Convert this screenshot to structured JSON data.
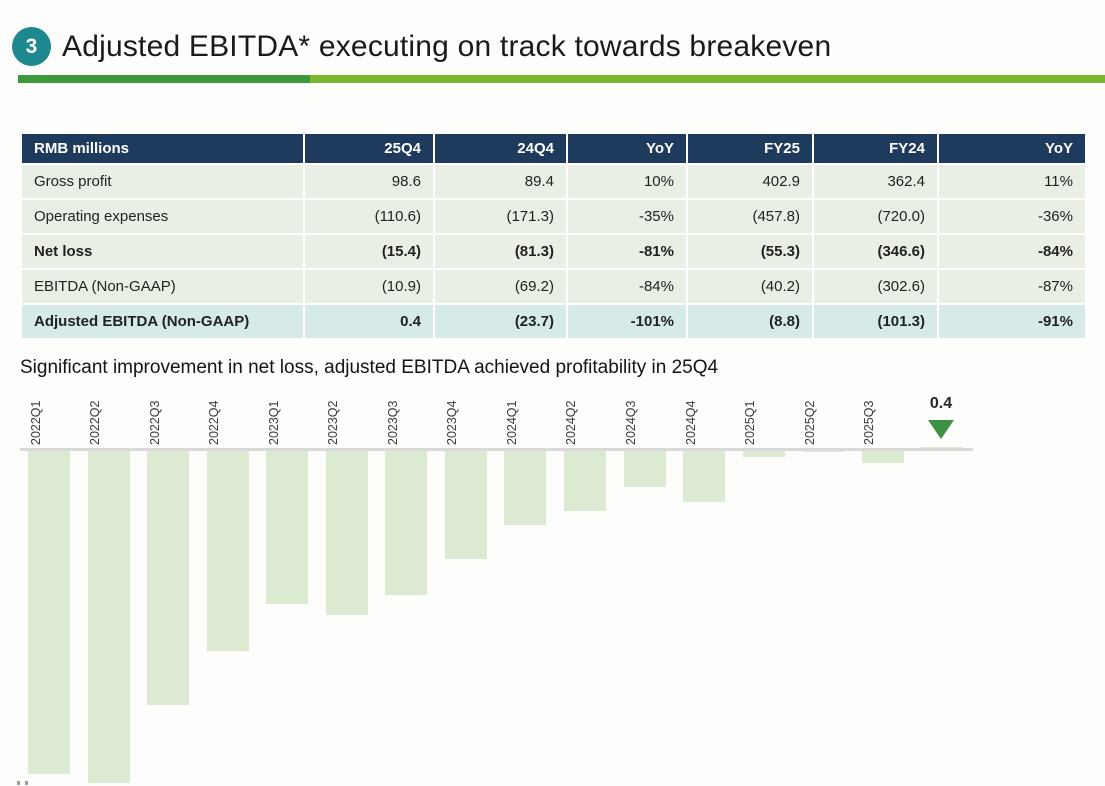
{
  "header": {
    "badge": "3",
    "title": "Adjusted EBITDA* executing on track towards breakeven"
  },
  "table": {
    "columns": [
      "RMB millions",
      "25Q4",
      "24Q4",
      "YoY",
      "FY25",
      "FY24",
      "YoY"
    ],
    "rows": [
      {
        "label": "Gross profit",
        "values": [
          "98.6",
          "89.4",
          "10%",
          "402.9",
          "362.4",
          "11%"
        ],
        "bold": false,
        "highlight": false
      },
      {
        "label": "Operating expenses",
        "values": [
          "(110.6)",
          "(171.3)",
          "-35%",
          "(457.8)",
          "(720.0)",
          "-36%"
        ],
        "bold": false,
        "highlight": false
      },
      {
        "label": "Net loss",
        "values": [
          "(15.4)",
          "(81.3)",
          "-81%",
          "(55.3)",
          "(346.6)",
          "-84%"
        ],
        "bold": true,
        "highlight": false
      },
      {
        "label": "EBITDA (Non-GAAP)",
        "values": [
          "(10.9)",
          "(69.2)",
          "-84%",
          "(40.2)",
          "(302.6)",
          "-87%"
        ],
        "bold": false,
        "highlight": false
      },
      {
        "label": "Adjusted EBITDA (Non-GAAP)",
        "values": [
          "0.4",
          "(23.7)",
          "-101%",
          "(8.8)",
          "(101.3)",
          "-91%"
        ],
        "bold": true,
        "highlight": true
      }
    ]
  },
  "subtitle": "Significant improvement in net loss, adjusted EBITDA achieved profitability in 25Q4",
  "chart_data": {
    "type": "bar",
    "title": "",
    "categories": [
      "2022Q1",
      "2022Q2",
      "2022Q3",
      "2022Q4",
      "2023Q1",
      "2023Q2",
      "2023Q3",
      "2023Q4",
      "2024Q1",
      "2024Q2",
      "2024Q3",
      "2024Q4",
      "2025Q1",
      "2025Q2",
      "2025Q3",
      ""
    ],
    "values": [
      -150,
      -154.5,
      -118,
      -93,
      -71,
      -76,
      -67,
      -50,
      -34.5,
      -28,
      -16.5,
      -23.7,
      -2.8,
      -0.5,
      -5.6,
      0.4
    ],
    "annotation": {
      "label": "0.4",
      "position": "last-bar",
      "marker": "down-triangle"
    },
    "ylim": [
      -160,
      10
    ],
    "grid": false,
    "legend": "none",
    "bar_color": "#dcead2",
    "axis_color": "#d9d9d9",
    "marker_color": "#3e9142"
  },
  "colors": {
    "badge_teal": "#1d898e",
    "underline_dark_green": "#3c9a3a",
    "underline_light_green": "#79b72d",
    "table_header_navy": "#1e3a5c",
    "row_green": "#e9efe4",
    "highlight_teal_row": "#d6ebe7",
    "bar_green": "#dcead2",
    "triangle_green": "#3e9142"
  }
}
